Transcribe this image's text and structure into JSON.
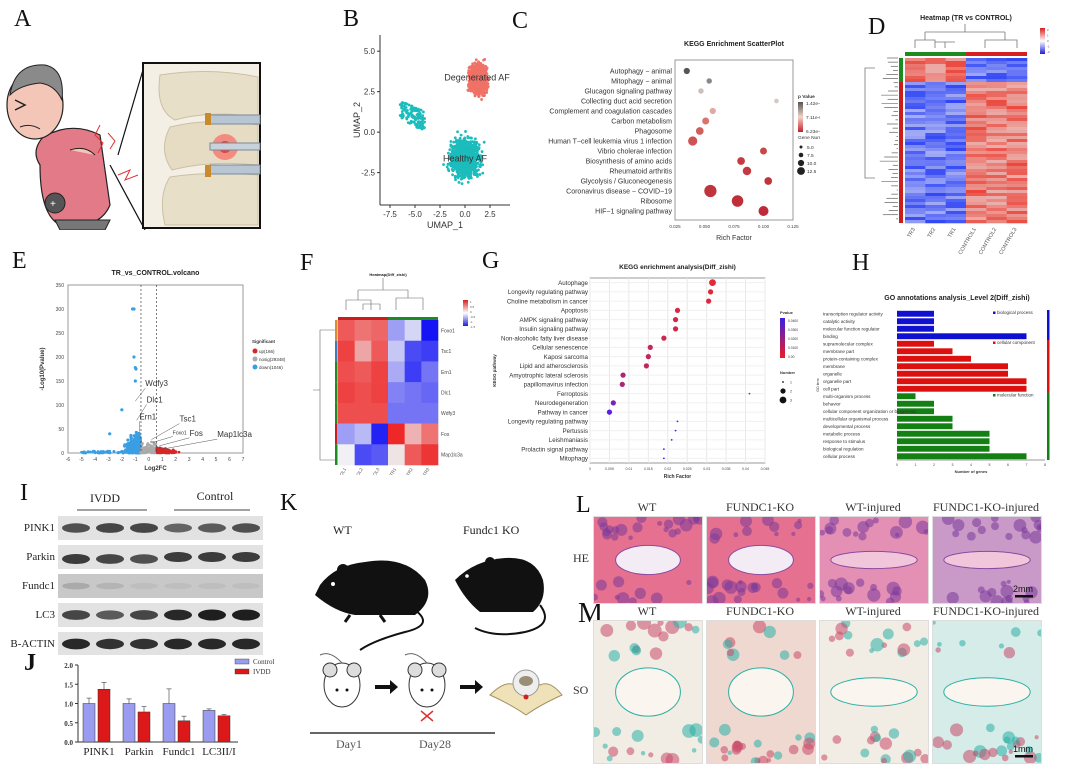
{
  "panels": {
    "A": {
      "letter": "A",
      "description": "Cartoon of elderly man with back pain and zoomed spine illustration showing inflamed intervertebral disc"
    },
    "B": {
      "letter": "B"
    },
    "C": {
      "letter": "C"
    },
    "D": {
      "letter": "D"
    },
    "E": {
      "letter": "E"
    },
    "F": {
      "letter": "F"
    },
    "G": {
      "letter": "G"
    },
    "H": {
      "letter": "H"
    },
    "I": {
      "letter": "I"
    },
    "J": {
      "letter": "J"
    },
    "K": {
      "letter": "K"
    },
    "L": {
      "letter": "L"
    },
    "M": {
      "letter": "M"
    }
  },
  "chart_data": [
    {
      "id": "B",
      "type": "scatter",
      "title": "",
      "xlabel": "UMAP_1",
      "ylabel": "UMAP_2",
      "xlim": [
        -8.5,
        4.5
      ],
      "ylim": [
        -4.5,
        6
      ],
      "xticks": [
        "-7.5",
        "-5.0",
        "-2.5",
        "0.0",
        "2.5"
      ],
      "yticks": [
        "5.0",
        "2.5",
        "0.0",
        "-2.5"
      ],
      "clusters": [
        {
          "name": "Degenerated AF",
          "color": "#f07167",
          "center": [
            1.2,
            3.2
          ]
        },
        {
          "name": "Healthy AF",
          "color": "#1cbcbc",
          "center": [
            0.0,
            -1.8
          ]
        }
      ]
    },
    {
      "id": "C",
      "type": "scatter",
      "title": "KEGG Enrichment ScatterPlot",
      "xlabel": "Rich Factor",
      "xlim": [
        0.025,
        0.125
      ],
      "xticks": [
        "0.025",
        "0.050",
        "0.075",
        "0.100",
        "0.125"
      ],
      "categories": [
        "Autophagy − animal",
        "Mitophagy − animal",
        "Glucagon signaling pathway",
        "Collecting duct acid secretion",
        "Complement and coagulation cascades",
        "Carbon metabolism",
        "Phagosome",
        "Human T−cell leukemia virus 1 infection",
        "Vibrio cholerae infection",
        "Biosynthesis of amino acids",
        "Rheumatoid arthritis",
        "Glycolysis / Gluconeogenesis",
        "Coronavirus disease − COVID−19",
        "Ribosome",
        "HIF−1 signaling pathway"
      ],
      "rich_factor": [
        0.035,
        0.054,
        0.047,
        0.111,
        0.057,
        0.051,
        0.046,
        0.04,
        0.1,
        0.081,
        0.086,
        0.104,
        0.055,
        0.078,
        0.1
      ],
      "gene_number": [
        5,
        4,
        4,
        3,
        5,
        6,
        7,
        9,
        6,
        7,
        8,
        7,
        13,
        12,
        10
      ],
      "p_value_color": [
        "#555555",
        "#888888",
        "#c9c0bb",
        "#d8c8c4",
        "#e4a8a0",
        "#d9736d",
        "#d0605c",
        "#cd5454",
        "#c84848",
        "#c53a40",
        "#c33a40",
        "#c0353d",
        "#c0353d",
        "#bf2f3a",
        "#be2a38"
      ],
      "legend": {
        "color_title": "p Value",
        "color_ticks": [
          "1.42e-02",
          "7.11e-03",
          "6.23e-08"
        ],
        "size_title": "Gene Number",
        "size_ticks": [
          "5.0",
          "7.5",
          "10.0",
          "12.5"
        ]
      }
    },
    {
      "id": "D",
      "type": "heatmap",
      "title": "Heatmap (TR vs CONTROL)",
      "columns": [
        "TR3",
        "TR2",
        "TR1",
        "CONTROL1",
        "CONTROL2",
        "CONTROL3"
      ],
      "legend_ticks": [
        "2",
        "1",
        "0",
        "-1",
        "-2"
      ],
      "groups": [
        {
          "name": "TR",
          "color": "#1e8b1e"
        },
        {
          "name": "CONTROL",
          "color": "#d42020"
        }
      ]
    },
    {
      "id": "E",
      "type": "scatter",
      "title": "TR_vs_CONTROL.volcano",
      "xlabel": "Log2FC",
      "ylabel": "-Log10(Pvalue)",
      "xlim": [
        -6,
        7
      ],
      "ylim": [
        0,
        350
      ],
      "xticks": [
        "-6",
        "-5",
        "-4",
        "-3",
        "-2",
        "-1",
        "0",
        "1",
        "2",
        "3",
        "4",
        "5",
        "6",
        "7"
      ],
      "yticks": [
        "0",
        "50",
        "100",
        "150",
        "200",
        "250",
        "300",
        "350"
      ],
      "thresholds_log2fc": [
        -0.58,
        0.58
      ],
      "legend": {
        "title": "Significant",
        "entries": [
          {
            "label": "up(166)",
            "color": "#d62728"
          },
          {
            "label": "nosig(29348)",
            "color": "#aaaaaa"
          },
          {
            "label": "down(1046)",
            "color": "#3a9ee4"
          }
        ]
      },
      "annotations": [
        {
          "label": "Wdfy3",
          "x": -1.0,
          "y": 108
        },
        {
          "label": "Dlc1",
          "x": -0.9,
          "y": 68
        },
        {
          "label": "Ern1",
          "x": -0.7,
          "y": 45
        },
        {
          "label": "Tsc1",
          "x": 0.2,
          "y": 28
        },
        {
          "label": "Foxo1",
          "x": 0.3,
          "y": 22
        },
        {
          "label": "Fos",
          "x": 0.8,
          "y": 15
        },
        {
          "label": "Map1lc3a",
          "x": 1.0,
          "y": 8
        }
      ]
    },
    {
      "id": "F",
      "type": "heatmap",
      "title": "Heatmap(Diff_zishi)",
      "rows": [
        "Foxo1",
        "Tsc1",
        "Ern1",
        "Dlc1",
        "Wdfy3",
        "Fos",
        "Map1lc3a"
      ],
      "columns": [
        "CONTROL1",
        "CONTROL2",
        "CONTROL3",
        "TR1",
        "TR2",
        "TR3"
      ],
      "values": [
        [
          1.2,
          1.0,
          1.1,
          -0.6,
          -0.2,
          -1.6
        ],
        [
          1.4,
          0.6,
          1.2,
          -0.3,
          -1.2,
          -1.3
        ],
        [
          1.3,
          1.2,
          1.4,
          -0.5,
          -1.3,
          -0.9
        ],
        [
          1.4,
          1.3,
          1.4,
          -0.8,
          -0.9,
          -1.0
        ],
        [
          1.3,
          1.3,
          1.3,
          -0.9,
          -0.9,
          -0.9
        ],
        [
          -0.6,
          -0.4,
          -1.5,
          1.6,
          0.5,
          1.0
        ],
        [
          0.0,
          -1.2,
          -1.1,
          0.1,
          1.2,
          1.5
        ]
      ],
      "legend_ticks": [
        "1",
        "0.5",
        "0",
        "-0.5",
        "-1",
        "-1.5"
      ]
    },
    {
      "id": "G",
      "type": "scatter",
      "title": "KEGG enrichment analysis(Diff_zishi)",
      "xlabel": "Rich Factor",
      "ylabel": "KEGG pathway",
      "xlim": [
        0,
        0.045
      ],
      "xticks": [
        "0",
        "0.005",
        "0.01",
        "0.015",
        "0.02",
        "0.025",
        "0.03",
        "0.035",
        "0.04",
        "0.045"
      ],
      "categories": [
        "Autophage",
        "Longevity regulating pathway",
        "Choline metabolism in cancer",
        "Apoptosis",
        "AMPK signaling pathway",
        "Insulin signaling pathway",
        "Non-alcoholic fatty liver disease",
        "Cellular senescence",
        "Kaposi sarcoma",
        "Lipid and atherosclerosis",
        "Amyotrophic lateral sclerosis",
        "papillomavirus infection",
        "Ferroptosis",
        "Neurodegeneration",
        "Pathway in cancer",
        "Longevity regulating pathway",
        "Pertussis",
        "Leishmaniasis",
        "Prolactin signal pathway",
        "Mitophagy"
      ],
      "rich_factor": [
        0.0315,
        0.031,
        0.0305,
        0.0225,
        0.022,
        0.022,
        0.019,
        0.0155,
        0.015,
        0.0145,
        0.0085,
        0.0083,
        0.041,
        0.006,
        0.005,
        0.0225,
        0.022,
        0.021,
        0.019,
        0.019
      ],
      "number": [
        3,
        2,
        2,
        2,
        2,
        2,
        2,
        2,
        2,
        2,
        2,
        2,
        1,
        2,
        2,
        1,
        1,
        1,
        1,
        1
      ],
      "pvalue": [
        0.001,
        0.002,
        0.003,
        0.005,
        0.006,
        0.006,
        0.008,
        0.01,
        0.01,
        0.011,
        0.018,
        0.018,
        0.02,
        0.032,
        0.042,
        0.045,
        0.045,
        0.045,
        0.045,
        0.045
      ],
      "legend": {
        "color_title": "Pvalue",
        "color_ticks": [
          "0.0400",
          "0.0300",
          "0.0200",
          "0.0100",
          "0.00"
        ],
        "size_title": "Number",
        "size_ticks": [
          "1",
          "2",
          "3"
        ]
      }
    },
    {
      "id": "H",
      "type": "bar",
      "title": "GO annotations analysis_Level 2(Diff_zishi)",
      "xlabel": "Number of genes",
      "ylabel": "GO term",
      "xlim": [
        0,
        8
      ],
      "xticks": [
        "0",
        "1",
        "2",
        "3",
        "4",
        "5",
        "6",
        "7",
        "8"
      ],
      "categories": [
        "transcription regulator activity",
        "catalytic activity",
        "molecular function regulator",
        "binding",
        "supramolecular complex",
        "membrane part",
        "protein-containing complex",
        "membrane",
        "organelle",
        "organelle part",
        "cell part",
        "multi-organism process",
        "behavior",
        "cellular component organization or biogenesis",
        "multicellular organismal process",
        "developmental process",
        "metabolic process",
        "response to stimulus",
        "biological regulation",
        "cellular process"
      ],
      "values": [
        2,
        2,
        2,
        7,
        2,
        3,
        4,
        6,
        6,
        7,
        7,
        1,
        2,
        2,
        3,
        3,
        5,
        5,
        5,
        7
      ],
      "bar_colors": [
        "#1010d0",
        "#1010d0",
        "#1010d0",
        "#1010d0",
        "#dd1010",
        "#dd1010",
        "#dd1010",
        "#dd1010",
        "#dd1010",
        "#dd1010",
        "#dd1010",
        "#138013",
        "#138013",
        "#138013",
        "#138013",
        "#138013",
        "#138013",
        "#138013",
        "#138013",
        "#138013"
      ],
      "legend": [
        {
          "label": "biological process",
          "color": "#1010d0"
        },
        {
          "label": "cellular component",
          "color": "#dd1010"
        },
        {
          "label": "molecular function",
          "color": "#138013"
        }
      ]
    },
    {
      "id": "J",
      "type": "bar",
      "title": "",
      "categories": [
        "PINK1",
        "Parkin",
        "Fundc1",
        "LC3II/I"
      ],
      "ylim": [
        0,
        2.0
      ],
      "yticks": [
        "0.0",
        "0.5",
        "1.0",
        "1.5",
        "2.0"
      ],
      "series": [
        {
          "name": "Control",
          "color": "#9a9cf0",
          "values": [
            1.0,
            1.0,
            1.0,
            0.82
          ],
          "errors": [
            0.14,
            0.12,
            0.38,
            0.04
          ]
        },
        {
          "name": "IVDD",
          "color": "#dd1818",
          "values": [
            1.37,
            0.78,
            0.55,
            0.68
          ],
          "errors": [
            0.18,
            0.14,
            0.12,
            0.03
          ]
        }
      ]
    }
  ],
  "western_blot": {
    "groups": [
      "IVDD",
      "Control"
    ],
    "rows": [
      {
        "label": "PINK1",
        "intensity": [
          0.75,
          0.8,
          0.8,
          0.65,
          0.7,
          0.75
        ]
      },
      {
        "label": "Parkin",
        "intensity": [
          0.85,
          0.8,
          0.75,
          0.85,
          0.85,
          0.85
        ]
      },
      {
        "label": "Fundc1",
        "intensity": [
          0.3,
          0.25,
          0.2,
          0.2,
          0.2,
          0.2
        ]
      },
      {
        "label": "LC3",
        "intensity": [
          0.8,
          0.7,
          0.8,
          0.95,
          1.0,
          1.0
        ]
      },
      {
        "label": "B-ACTIN",
        "intensity": [
          0.95,
          0.9,
          0.9,
          0.95,
          0.95,
          0.95
        ]
      }
    ]
  },
  "mouse_model": {
    "labels": [
      "WT",
      "Fundc1 KO"
    ],
    "timeline": [
      "Day1",
      "Day28"
    ]
  },
  "histology": {
    "columns": [
      "WT",
      "FUNDC1-KO",
      "WT-injured",
      "FUNDC1-KO-injured"
    ],
    "rows": [
      {
        "stain": "HE",
        "scale_bar": "2mm"
      },
      {
        "stain": "SO",
        "scale_bar": "1mm"
      }
    ]
  }
}
